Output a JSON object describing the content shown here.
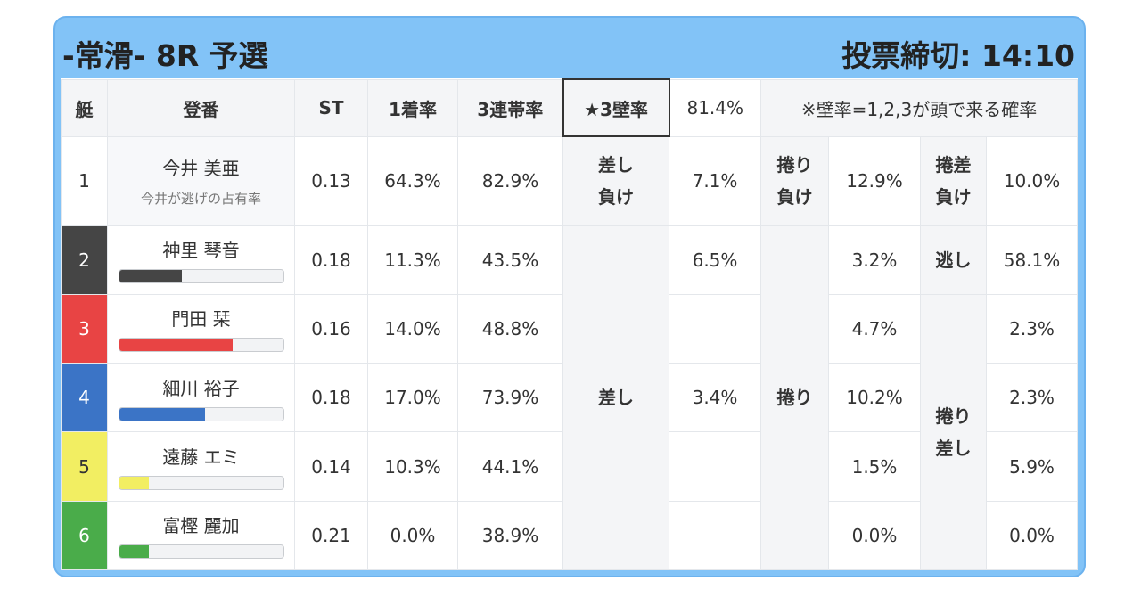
{
  "header": {
    "title": "-常滑- 8R 予選",
    "deadline": "投票締切: 14:10"
  },
  "table": {
    "header": [
      "艇",
      "登番",
      "ST",
      "1着率",
      "3連帯率",
      "★3壁率",
      "81.4%",
      "※壁率=1,2,3が頭で来る確率"
    ],
    "rows": [
      {
        "boat": "1",
        "name": "今井 美亜",
        "note": "今井が逃げの占有率",
        "st": "0.13",
        "win": "64.3%",
        "top3": "82.9%",
        "cells": [
          "差し\n負け",
          "7.1%",
          "捲り\n負け",
          "12.9%",
          "捲差\n負け",
          "10.0%"
        ]
      },
      {
        "boat": "2",
        "name": "神里 琴音",
        "bar": 38,
        "st": "0.18",
        "win": "11.3%",
        "top3": "43.5%",
        "cells": [
          "差し",
          "6.5%",
          "捲り",
          "3.2%",
          "逃し",
          "58.1%"
        ]
      },
      {
        "boat": "3",
        "name": "門田 栞",
        "bar": 69,
        "st": "0.16",
        "win": "14.0%",
        "top3": "48.8%",
        "cells": [
          "4.7%",
          "捲り\n差し",
          "2.3%"
        ]
      },
      {
        "boat": "4",
        "name": "細川 裕子",
        "bar": 52,
        "st": "0.18",
        "win": "17.0%",
        "top3": "73.9%",
        "cells": [
          "3.4%",
          "10.2%",
          "2.3%"
        ]
      },
      {
        "boat": "5",
        "name": "遠藤 エミ",
        "bar": 18,
        "st": "0.14",
        "win": "10.3%",
        "top3": "44.1%",
        "cells": [
          "1.5%",
          "5.9%"
        ]
      },
      {
        "boat": "6",
        "name": "富樫 麗加",
        "bar": 18,
        "st": "0.21",
        "win": "0.0%",
        "top3": "38.9%",
        "cells": [
          "0.0%",
          "0.0%"
        ]
      }
    ]
  }
}
